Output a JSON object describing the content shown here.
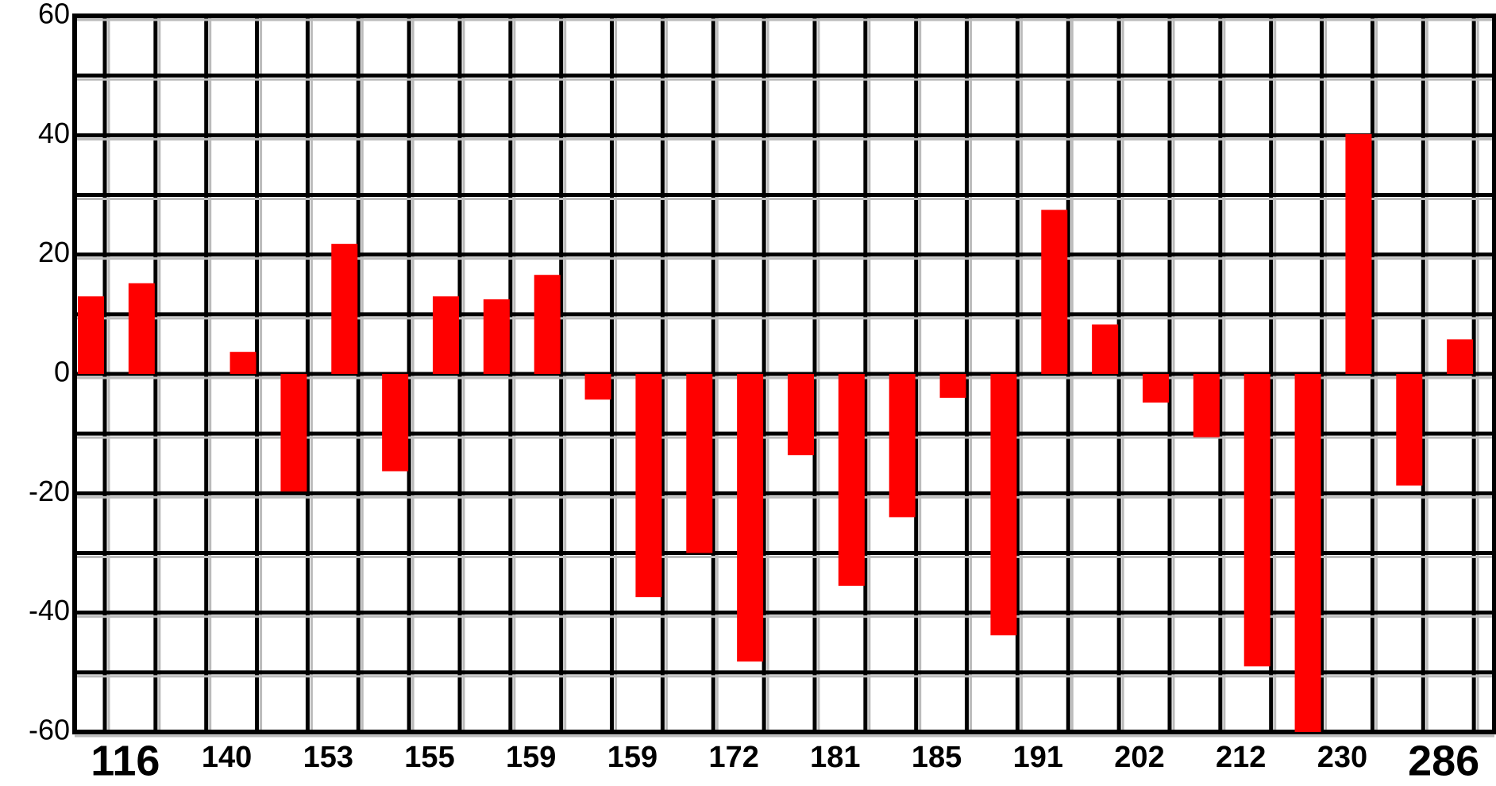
{
  "chart_data": {
    "type": "bar",
    "categories": [
      "116",
      null,
      "140",
      null,
      "153",
      null,
      "155",
      null,
      "159",
      null,
      "159",
      null,
      "172",
      null,
      "181",
      null,
      "185",
      null,
      "191",
      null,
      "202",
      null,
      "212",
      null,
      "230",
      null,
      "286",
      null
    ],
    "values": [
      13,
      15.2,
      null,
      3.7,
      -19.7,
      21.8,
      -16.3,
      13,
      12.5,
      16.6,
      -4.3,
      -37.4,
      -30,
      -48.2,
      -13.6,
      -35.5,
      -24,
      -4,
      -43.8,
      27.5,
      8.3,
      -4.8,
      -10.6,
      -49,
      -60,
      40.2,
      -18.7,
      5.8
    ],
    "color": "#ff0000",
    "ylim": [
      -60,
      60
    ],
    "yticks": [
      -60,
      -40,
      -20,
      0,
      20,
      40,
      60
    ],
    "grid": true
  }
}
